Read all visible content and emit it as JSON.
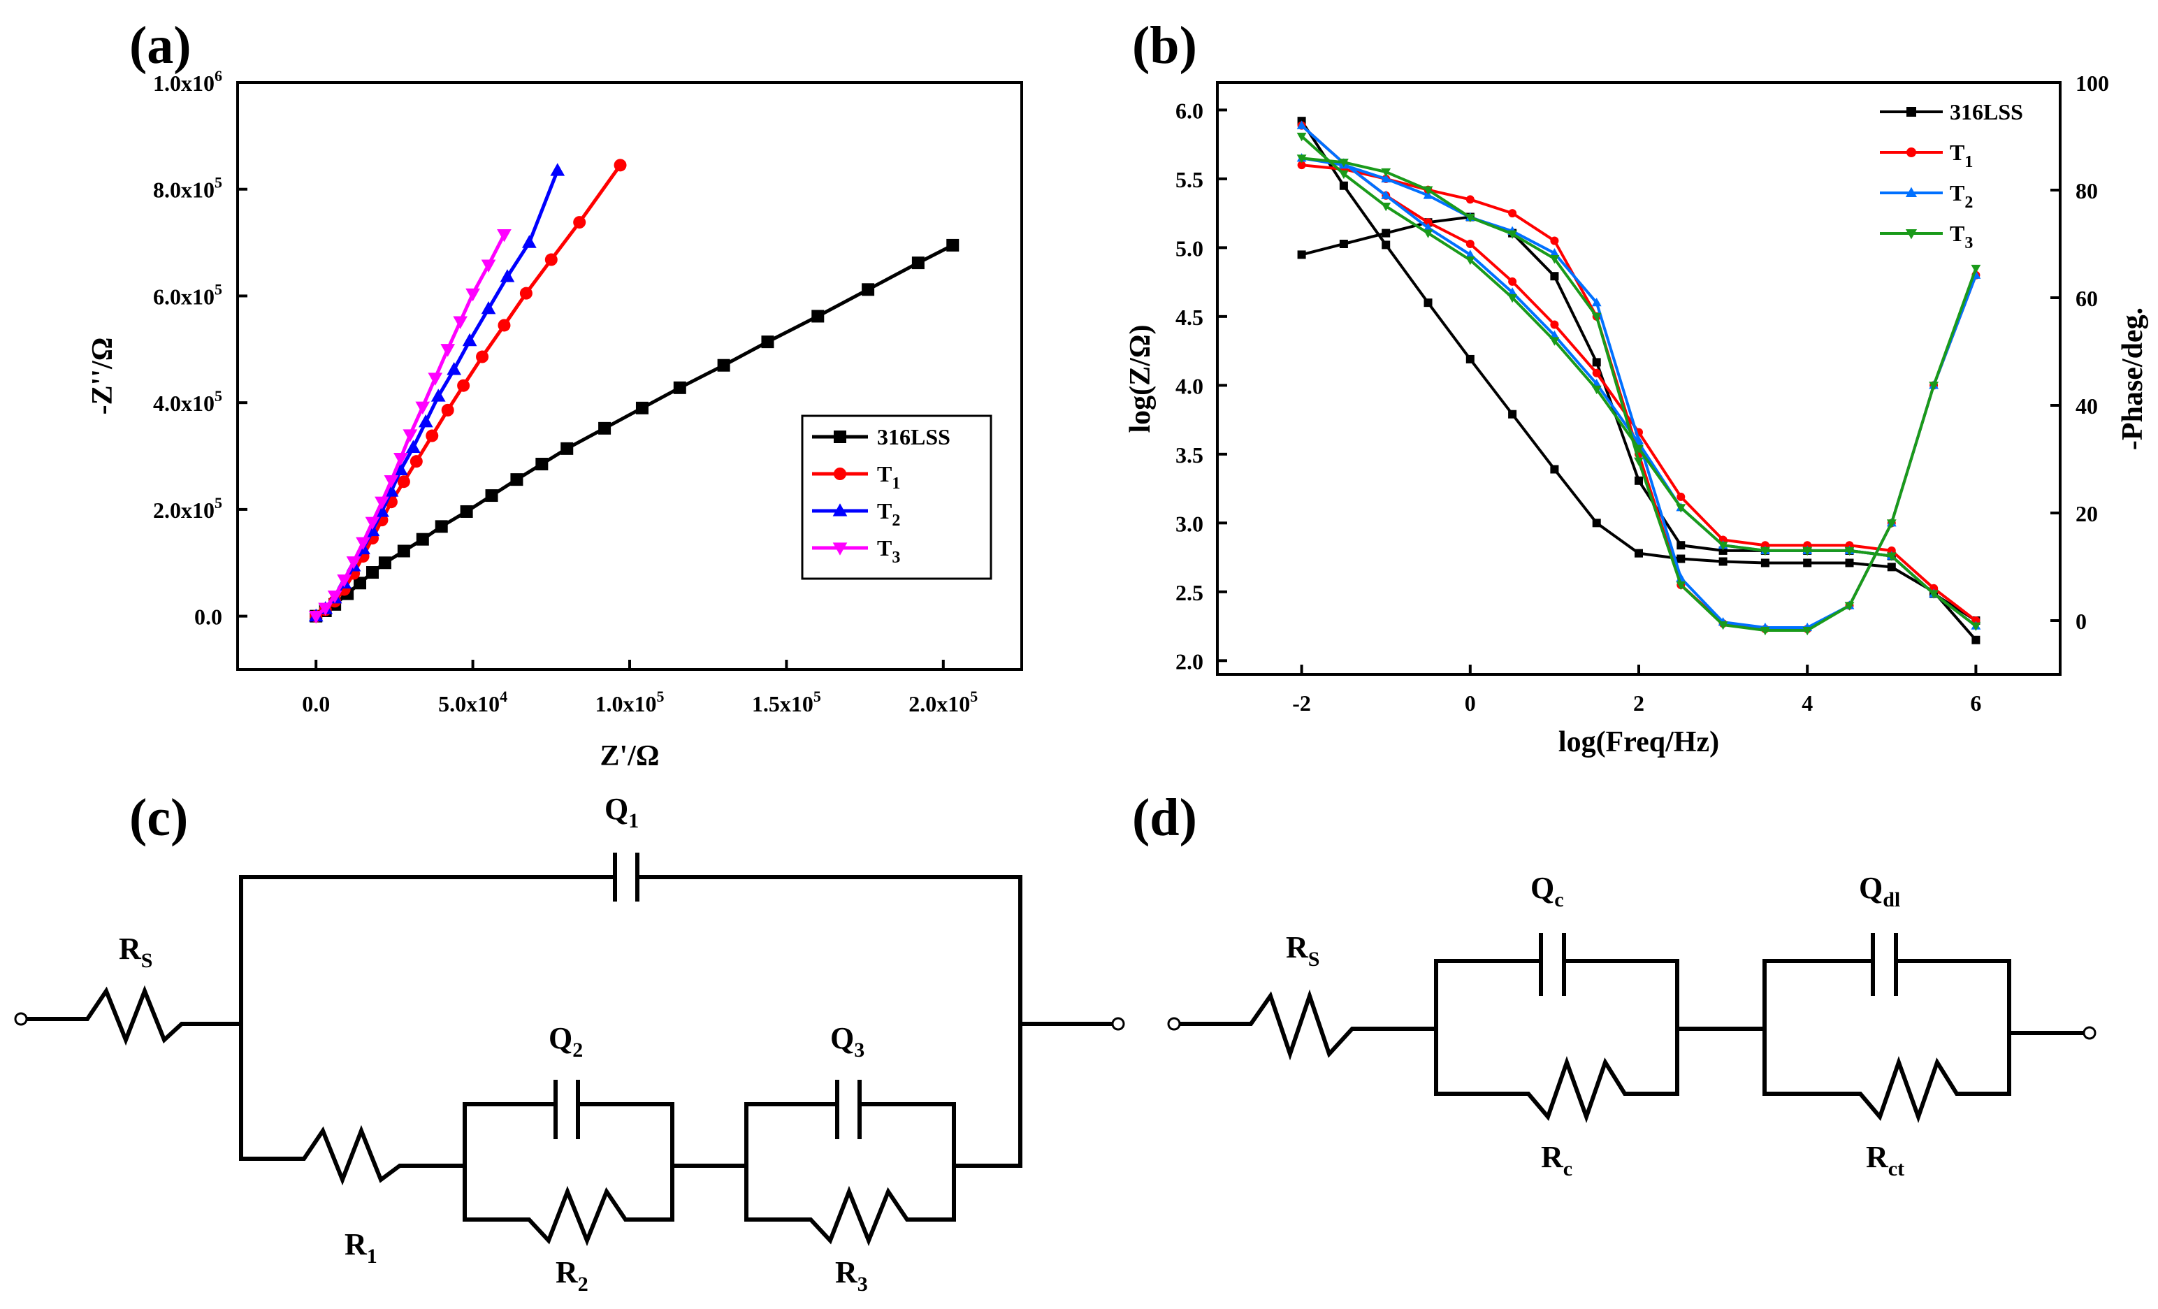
{
  "chart_data": [
    {
      "id": "a",
      "panel_label": "(a)",
      "type": "line",
      "xlabel": "Z'/Ω",
      "ylabel": "-Z''/Ω",
      "xlim": [
        -25000,
        225000
      ],
      "ylim": [
        -100000,
        1000000
      ],
      "xticks": [
        {
          "v": 0,
          "m": "0.0",
          "e": ""
        },
        {
          "v": 50000,
          "m": "5.0x10",
          "e": "4"
        },
        {
          "v": 100000,
          "m": "1.0x10",
          "e": "5"
        },
        {
          "v": 150000,
          "m": "1.5x10",
          "e": "5"
        },
        {
          "v": 200000,
          "m": "2.0x10",
          "e": "5"
        }
      ],
      "yticks": [
        {
          "v": 0,
          "m": "0.0",
          "e": ""
        },
        {
          "v": 200000,
          "m": "2.0x10",
          "e": "5"
        },
        {
          "v": 400000,
          "m": "4.0x10",
          "e": "5"
        },
        {
          "v": 600000,
          "m": "6.0x10",
          "e": "5"
        },
        {
          "v": 800000,
          "m": "8.0x10",
          "e": "5"
        },
        {
          "v": 1000000,
          "m": "1.0x10",
          "e": "6"
        }
      ],
      "legend_position": "center-right",
      "series": [
        {
          "name": "316LSS",
          "label_main": "316LSS",
          "label_sub": "",
          "color": "#000000",
          "marker": "square",
          "x": [
            0,
            3000,
            6000,
            10000,
            14000,
            18000,
            22000,
            28000,
            34000,
            40000,
            48000,
            56000,
            64000,
            72000,
            80000,
            92000,
            104000,
            116000,
            130000,
            144000,
            160000,
            176000,
            192000,
            203000
          ],
          "y": [
            0,
            10000,
            22000,
            42000,
            62000,
            82000,
            100000,
            122000,
            144000,
            168000,
            196000,
            226000,
            256000,
            285000,
            314000,
            352000,
            390000,
            428000,
            470000,
            514000,
            562000,
            612000,
            662000,
            695000
          ]
        },
        {
          "name": "T1",
          "label_main": "T",
          "label_sub": "1",
          "color": "#ff0000",
          "marker": "circle",
          "x": [
            0,
            3000,
            6000,
            9000,
            12000,
            15000,
            18000,
            21000,
            24000,
            28000,
            32000,
            37000,
            42000,
            47000,
            53000,
            60000,
            67000,
            75000,
            84000,
            97000
          ],
          "y": [
            0,
            12000,
            28000,
            50000,
            80000,
            112000,
            146000,
            180000,
            214000,
            252000,
            290000,
            338000,
            386000,
            432000,
            486000,
            545000,
            605000,
            668000,
            738000,
            845000
          ]
        },
        {
          "name": "T2",
          "label_main": "T",
          "label_sub": "2",
          "color": "#0000ff",
          "marker": "triangle-up",
          "x": [
            0,
            3000,
            6000,
            9000,
            12000,
            15000,
            18000,
            21000,
            24000,
            27000,
            31000,
            35000,
            39000,
            44000,
            49000,
            55000,
            61000,
            68000,
            77000
          ],
          "y": [
            0,
            14000,
            34000,
            62000,
            94000,
            126000,
            160000,
            196000,
            234000,
            274000,
            316000,
            364000,
            412000,
            462000,
            516000,
            576000,
            636000,
            700000,
            835000
          ]
        },
        {
          "name": "T3",
          "label_main": "T",
          "label_sub": "3",
          "color": "#ff00ff",
          "marker": "triangle-down",
          "x": [
            0,
            3000,
            6000,
            9000,
            12000,
            15000,
            18000,
            21000,
            24000,
            27000,
            30000,
            34000,
            38000,
            42000,
            46000,
            50000,
            55000,
            60000
          ],
          "y": [
            0,
            15000,
            38000,
            68000,
            102000,
            138000,
            176000,
            214000,
            254000,
            296000,
            340000,
            392000,
            446000,
            500000,
            552000,
            604000,
            658000,
            715000
          ]
        }
      ]
    },
    {
      "id": "b",
      "panel_label": "(b)",
      "type": "line",
      "xlabel": "log(Freq/Hz)",
      "ylabel": "log(Z/Ω)",
      "y2label": "-Phase/deg.",
      "xlim": [
        -3,
        7
      ],
      "ylim": [
        1.9,
        6.2
      ],
      "y2lim": [
        -10,
        100
      ],
      "xticks": [
        -2,
        0,
        2,
        4,
        6
      ],
      "xtick_labels": [
        "-2",
        "0",
        "2",
        "4",
        "6"
      ],
      "yticks": [
        2.0,
        2.5,
        3.0,
        3.5,
        4.0,
        4.5,
        5.0,
        5.5,
        6.0
      ],
      "ytick_labels": [
        "2.0",
        "2.5",
        "3.0",
        "3.5",
        "4.0",
        "4.5",
        "5.0",
        "5.5",
        "6.0"
      ],
      "y2ticks": [
        0,
        20,
        40,
        60,
        80,
        100
      ],
      "y2tick_labels": [
        "0",
        "20",
        "40",
        "60",
        "80",
        "100"
      ],
      "legend_position": "top-right",
      "series": [
        {
          "name": "316LSS",
          "label_main": "316LSS",
          "label_sub": "",
          "color": "#000000",
          "marker": "square",
          "x": [
            -2,
            -1.5,
            -1,
            -0.5,
            0,
            0.5,
            1,
            1.5,
            2,
            2.5,
            3,
            3.5,
            4,
            4.5,
            5,
            5.5,
            6
          ],
          "logz": [
            5.92,
            5.45,
            5.02,
            4.6,
            4.19,
            3.79,
            3.39,
            3.0,
            2.78,
            2.74,
            2.72,
            2.71,
            2.71,
            2.71,
            2.68,
            2.5,
            2.15
          ],
          "phase": [
            68,
            70,
            72,
            74,
            75,
            72,
            64,
            48,
            26,
            14,
            13,
            13,
            13,
            13,
            12,
            5,
            0
          ]
        },
        {
          "name": "T1",
          "label_main": "T",
          "label_sub": "1",
          "color": "#ff0000",
          "marker": "circle",
          "x": [
            -2,
            -1.5,
            -1,
            -0.5,
            0,
            0.5,
            1,
            1.5,
            2,
            2.5,
            3,
            3.5,
            4,
            4.5,
            5,
            5.5,
            6
          ],
          "logz": [
            5.6,
            5.57,
            5.5,
            5.42,
            5.35,
            5.25,
            5.05,
            4.5,
            3.5,
            2.55,
            2.27,
            2.23,
            2.23,
            2.4,
            3.0,
            4.0,
            4.8
          ],
          "phase": [
            92,
            85,
            79,
            74,
            70,
            63,
            55,
            46,
            35,
            23,
            15,
            14,
            14,
            14,
            13,
            6,
            0
          ]
        },
        {
          "name": "T2",
          "label_main": "T",
          "label_sub": "2",
          "color": "#0070ff",
          "marker": "triangle-up",
          "x": [
            -2,
            -1.5,
            -1,
            -0.5,
            0,
            0.5,
            1,
            1.5,
            2,
            2.5,
            3,
            3.5,
            4,
            4.5,
            5,
            5.5,
            6
          ],
          "logz": [
            5.65,
            5.6,
            5.5,
            5.38,
            5.22,
            5.12,
            4.96,
            4.6,
            3.6,
            2.6,
            2.28,
            2.24,
            2.24,
            2.4,
            3.0,
            4.0,
            4.8
          ],
          "phase": [
            92,
            85,
            79,
            73,
            68,
            61,
            53,
            44,
            33,
            21,
            14,
            13,
            13,
            13,
            12,
            5,
            -1
          ]
        },
        {
          "name": "T3",
          "label_main": "T",
          "label_sub": "3",
          "color": "#1a9a1a",
          "marker": "triangle-down",
          "x": [
            -2,
            -1.5,
            -1,
            -0.5,
            0,
            0.5,
            1,
            1.5,
            2,
            2.5,
            3,
            3.5,
            4,
            4.5,
            5,
            5.5,
            6
          ],
          "logz": [
            5.65,
            5.62,
            5.55,
            5.42,
            5.22,
            5.1,
            4.92,
            4.5,
            3.45,
            2.55,
            2.26,
            2.22,
            2.22,
            2.4,
            3.0,
            4.0,
            4.85
          ],
          "phase": [
            90,
            83,
            77,
            72,
            67,
            60,
            52,
            43,
            32,
            21,
            14,
            13,
            13,
            13,
            12,
            5,
            -1
          ]
        }
      ]
    }
  ],
  "circuits": {
    "c": {
      "panel_label": "(c)",
      "Rs": {
        "main": "R",
        "sub": "S"
      },
      "Q1": {
        "main": "Q",
        "sub": "1"
      },
      "R1": {
        "main": "R",
        "sub": "1"
      },
      "Q2": {
        "main": "Q",
        "sub": "2"
      },
      "R2": {
        "main": "R",
        "sub": "2"
      },
      "Q3": {
        "main": "Q",
        "sub": "3"
      },
      "R3": {
        "main": "R",
        "sub": "3"
      }
    },
    "d": {
      "panel_label": "(d)",
      "Rs": {
        "main": "R",
        "sub": "S"
      },
      "Qc": {
        "main": "Q",
        "sub": "c"
      },
      "Rc": {
        "main": "R",
        "sub": "c"
      },
      "Qdl": {
        "main": "Q",
        "sub": "dl"
      },
      "Rct": {
        "main": "R",
        "sub": "ct"
      }
    }
  }
}
